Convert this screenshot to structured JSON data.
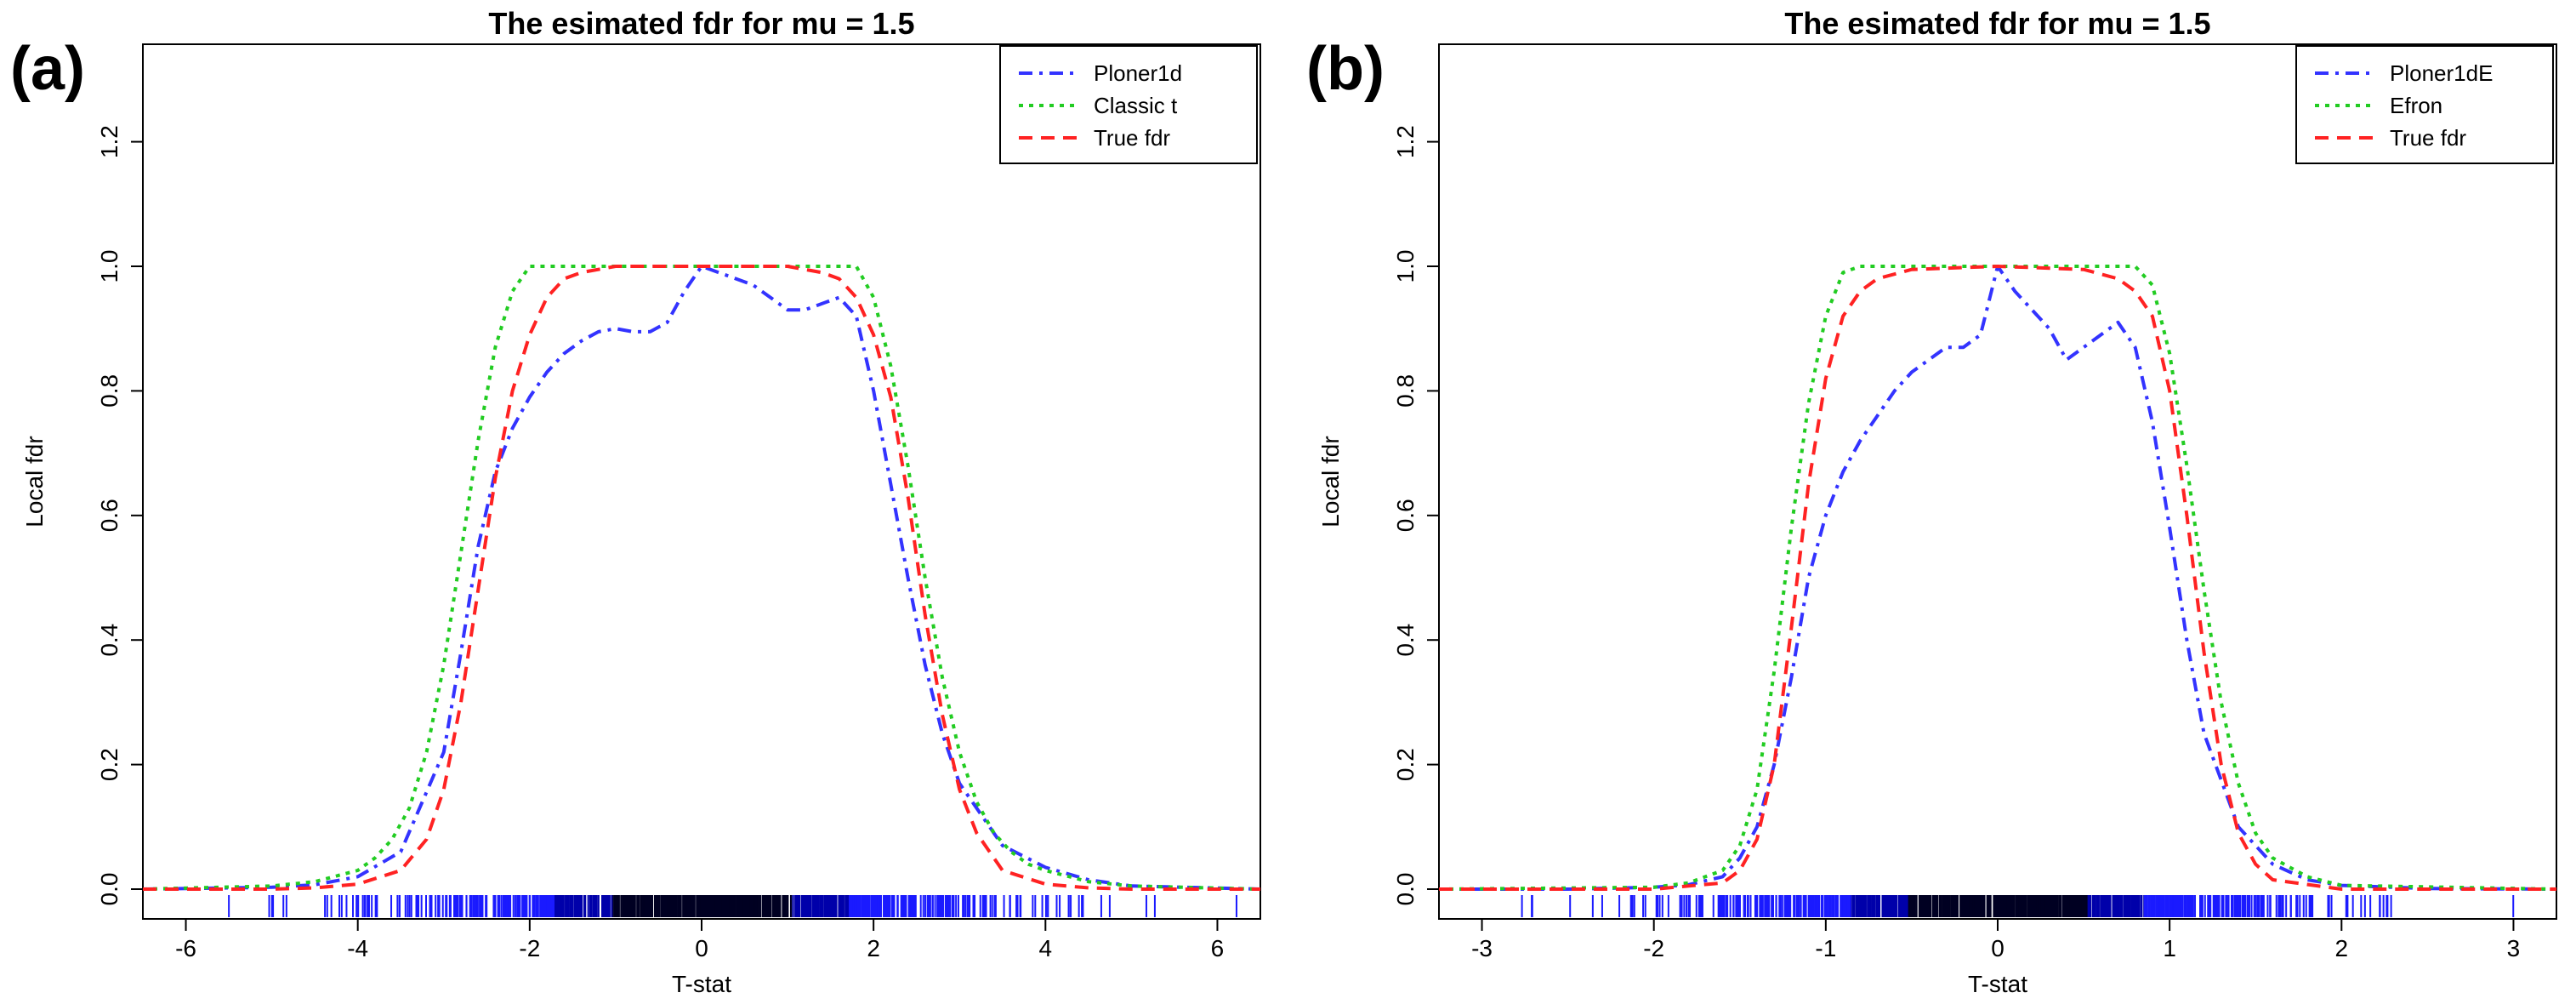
{
  "chart_data": [
    {
      "type": "line",
      "panel_label": "(a)",
      "title": "The esimated fdr for mu =  1.5",
      "xlabel": "T-stat",
      "ylabel": "Local fdr",
      "xlim": [
        -6.5,
        6.5
      ],
      "ylim": [
        0.0,
        1.3
      ],
      "xticks": [
        -6,
        -4,
        -2,
        0,
        2,
        4,
        6
      ],
      "yticks": [
        0.0,
        0.2,
        0.4,
        0.6,
        0.8,
        1.0,
        1.2
      ],
      "legend_position": "top-right",
      "rug": {
        "range": [
          -6.3,
          6.3
        ],
        "sd": 1.9
      },
      "series": [
        {
          "name": "Ploner1d",
          "color": "#3333ff",
          "dash": "dotdash",
          "x": [
            -6.5,
            -5,
            -4.5,
            -4,
            -3.5,
            -3,
            -2.8,
            -2.6,
            -2.4,
            -2.2,
            -2,
            -1.8,
            -1.6,
            -1.4,
            -1.2,
            -1,
            -0.8,
            -0.6,
            -0.4,
            -0.2,
            0,
            0.2,
            0.4,
            0.6,
            0.8,
            1,
            1.2,
            1.4,
            1.6,
            1.8,
            2,
            2.2,
            2.4,
            2.6,
            2.8,
            3,
            3.5,
            4,
            4.5,
            5,
            6.5
          ],
          "y": [
            0.0,
            0.003,
            0.007,
            0.02,
            0.06,
            0.22,
            0.38,
            0.55,
            0.67,
            0.74,
            0.79,
            0.83,
            0.86,
            0.88,
            0.895,
            0.9,
            0.895,
            0.895,
            0.91,
            0.96,
            1.0,
            0.99,
            0.98,
            0.97,
            0.95,
            0.93,
            0.93,
            0.94,
            0.95,
            0.92,
            0.8,
            0.65,
            0.5,
            0.36,
            0.25,
            0.17,
            0.07,
            0.035,
            0.015,
            0.005,
            0.0
          ]
        },
        {
          "name": "Classic t",
          "color": "#22cc22",
          "dash": "dotted",
          "x": [
            -6.5,
            -5,
            -4.5,
            -4,
            -3.8,
            -3.6,
            -3.4,
            -3.2,
            -3,
            -2.8,
            -2.6,
            -2.4,
            -2.2,
            -2,
            -1.8,
            1.8,
            2,
            2.2,
            2.4,
            2.6,
            2.8,
            3,
            3.2,
            3.4,
            3.6,
            3.8,
            4,
            4.5,
            5,
            6.5
          ],
          "y": [
            0.0,
            0.005,
            0.012,
            0.03,
            0.05,
            0.08,
            0.13,
            0.22,
            0.36,
            0.54,
            0.72,
            0.87,
            0.96,
            1.0,
            1.0,
            1.0,
            0.95,
            0.84,
            0.68,
            0.5,
            0.34,
            0.22,
            0.14,
            0.09,
            0.06,
            0.04,
            0.03,
            0.012,
            0.005,
            0.0
          ]
        },
        {
          "name": "True fdr",
          "color": "#ff2222",
          "dash": "dashed",
          "x": [
            -6.5,
            -5,
            -4.5,
            -4,
            -3.5,
            -3.2,
            -3,
            -2.8,
            -2.6,
            -2.4,
            -2.2,
            -2,
            -1.8,
            -1.6,
            -1.4,
            -1,
            0,
            1,
            1.4,
            1.6,
            1.8,
            2,
            2.2,
            2.4,
            2.6,
            2.8,
            3,
            3.2,
            3.5,
            4,
            4.5,
            5,
            6.5
          ],
          "y": [
            0.0,
            0.0,
            0.002,
            0.008,
            0.03,
            0.08,
            0.16,
            0.3,
            0.48,
            0.66,
            0.8,
            0.89,
            0.95,
            0.98,
            0.99,
            1.0,
            1.0,
            1.0,
            0.99,
            0.98,
            0.95,
            0.89,
            0.79,
            0.63,
            0.44,
            0.28,
            0.16,
            0.09,
            0.03,
            0.008,
            0.002,
            0.0,
            0.0
          ]
        }
      ]
    },
    {
      "type": "line",
      "panel_label": "(b)",
      "title": "The esimated fdr for mu =  1.5",
      "xlabel": "T-stat",
      "ylabel": "Local fdr",
      "xlim": [
        -3.25,
        3.25
      ],
      "ylim": [
        0.0,
        1.3
      ],
      "xticks": [
        -3,
        -2,
        -1,
        0,
        1,
        2,
        3
      ],
      "yticks": [
        0.0,
        0.2,
        0.4,
        0.6,
        0.8,
        1.0,
        1.2
      ],
      "legend_position": "top-right",
      "rug": {
        "range": [
          -3.1,
          3.1
        ],
        "sd": 0.95
      },
      "series": [
        {
          "name": "Ploner1dE",
          "color": "#3333ff",
          "dash": "dotdash",
          "x": [
            -3.25,
            -2.5,
            -2,
            -1.8,
            -1.6,
            -1.5,
            -1.4,
            -1.3,
            -1.2,
            -1.1,
            -1,
            -0.9,
            -0.8,
            -0.7,
            -0.6,
            -0.5,
            -0.4,
            -0.3,
            -0.2,
            -0.1,
            0,
            0.1,
            0.2,
            0.3,
            0.4,
            0.5,
            0.6,
            0.7,
            0.8,
            0.9,
            1,
            1.1,
            1.2,
            1.4,
            1.6,
            1.8,
            2,
            2.5,
            3.25
          ],
          "y": [
            0.0,
            0.0,
            0.003,
            0.007,
            0.02,
            0.05,
            0.1,
            0.2,
            0.34,
            0.5,
            0.6,
            0.67,
            0.72,
            0.76,
            0.8,
            0.83,
            0.85,
            0.87,
            0.87,
            0.89,
            1.0,
            0.96,
            0.93,
            0.9,
            0.85,
            0.87,
            0.89,
            0.91,
            0.87,
            0.75,
            0.58,
            0.4,
            0.25,
            0.1,
            0.04,
            0.015,
            0.006,
            0.001,
            0.0
          ]
        },
        {
          "name": "Efron",
          "color": "#22cc22",
          "dash": "dotted",
          "x": [
            -3.25,
            -2,
            -1.8,
            -1.6,
            -1.5,
            -1.4,
            -1.3,
            -1.2,
            -1.1,
            -1,
            -0.9,
            -0.8,
            0.8,
            0.9,
            1,
            1.1,
            1.2,
            1.3,
            1.4,
            1.5,
            1.6,
            1.8,
            2,
            3.25
          ],
          "y": [
            0.0,
            0.003,
            0.01,
            0.03,
            0.07,
            0.16,
            0.35,
            0.58,
            0.78,
            0.92,
            0.99,
            1.0,
            1.0,
            0.97,
            0.86,
            0.68,
            0.48,
            0.3,
            0.17,
            0.09,
            0.05,
            0.02,
            0.006,
            0.0
          ]
        },
        {
          "name": "True fdr",
          "color": "#ff2222",
          "dash": "dashed",
          "x": [
            -3.25,
            -2,
            -1.6,
            -1.5,
            -1.4,
            -1.3,
            -1.2,
            -1.1,
            -1,
            -0.9,
            -0.8,
            -0.7,
            -0.5,
            0,
            0.5,
            0.7,
            0.8,
            0.9,
            1,
            1.1,
            1.2,
            1.3,
            1.4,
            1.5,
            1.6,
            2,
            3.25
          ],
          "y": [
            0.0,
            0.0,
            0.01,
            0.03,
            0.08,
            0.2,
            0.42,
            0.65,
            0.82,
            0.92,
            0.96,
            0.98,
            0.995,
            1.0,
            0.995,
            0.98,
            0.96,
            0.92,
            0.8,
            0.6,
            0.38,
            0.2,
            0.09,
            0.04,
            0.015,
            0.0,
            0.0
          ]
        }
      ]
    }
  ]
}
